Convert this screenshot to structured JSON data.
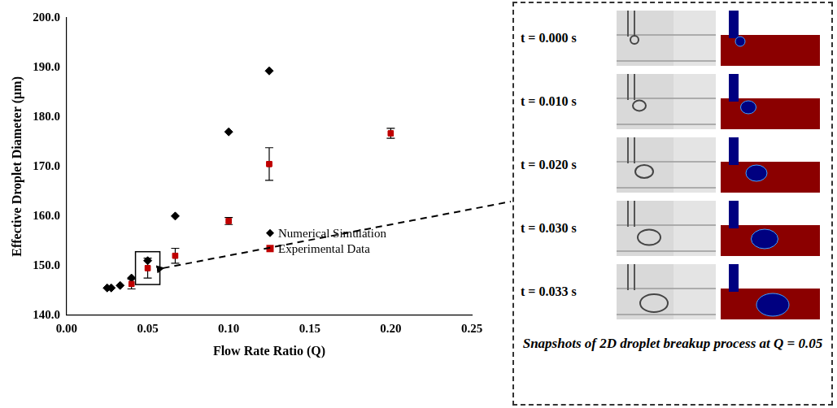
{
  "chart_data": {
    "type": "scatter",
    "x_label": "Flow Rate Ratio (Q)",
    "y_label": "Effective Droplet Diameter (µm)",
    "xlim": [
      0,
      0.25
    ],
    "xticks": [
      {
        "value": 0,
        "label": "0.00"
      },
      {
        "value": 0.05,
        "label": "0.05"
      },
      {
        "value": 0.1,
        "label": "0.10"
      },
      {
        "value": 0.15,
        "label": "0.15"
      },
      {
        "value": 0.2,
        "label": "0.20"
      },
      {
        "value": 0.25,
        "label": "0.25"
      }
    ],
    "ylim": [
      140,
      200
    ],
    "yticks": [
      {
        "value": 140,
        "label": "140.0"
      },
      {
        "value": 150,
        "label": "150.0"
      },
      {
        "value": 160,
        "label": "160.0"
      },
      {
        "value": 170,
        "label": "170.0"
      },
      {
        "value": 180,
        "label": "180.0"
      },
      {
        "value": 190,
        "label": "190.0"
      },
      {
        "value": 200,
        "label": "200.0"
      }
    ],
    "grid": false,
    "legend": "lower right",
    "series": [
      {
        "name": "Numerical Simulation",
        "color": "#000000",
        "marker": "diamond",
        "x": [
          0.025,
          0.0275,
          0.033,
          0.04,
          0.05,
          0.067,
          0.1,
          0.125
        ],
        "values": [
          145.5,
          145.5,
          146.0,
          147.5,
          151.0,
          160.0,
          177.0,
          189.3
        ]
      },
      {
        "name": "Experimental Data",
        "color": "#c00000",
        "marker": "square",
        "x": [
          0.04,
          0.05,
          0.067,
          0.1,
          0.125,
          0.2
        ],
        "values": [
          146.3,
          149.5,
          152.0,
          159.0,
          170.5,
          176.7
        ],
        "errors": [
          1.0,
          2.0,
          1.5,
          0.7,
          3.3,
          1.0
        ]
      }
    ],
    "annotations": [
      {
        "x": 0.05
      }
    ]
  },
  "snapshots": {
    "times": [
      "t = 0.000 s",
      "t = 0.010 s",
      "t = 0.020 s",
      "t = 0.030 s",
      "t = 0.033 s"
    ],
    "caption": "Snapshots of 2D droplet breakup process at Q = 0.05"
  }
}
